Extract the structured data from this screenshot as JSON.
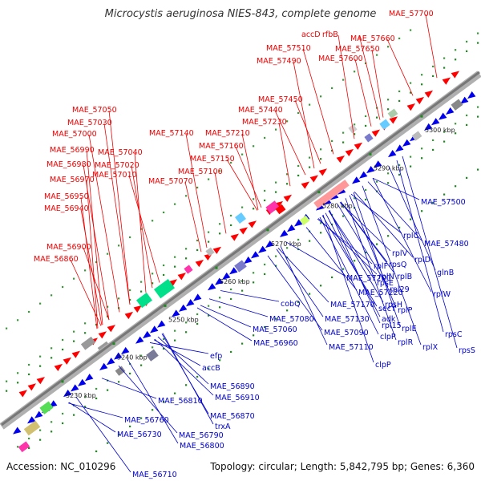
{
  "title": "Microcystis aeruginosa NIES-843, complete genome",
  "footer": {
    "accession": "Accession: NC_010296",
    "topology": "Topology: circular; Length: 5,842,795 bp; Genes: 6,360"
  },
  "colors": {
    "upper_label": "#ee0000",
    "lower_label": "#0000cc",
    "axis": "#9a9a9a",
    "tick": "#1f8a1f"
  },
  "axis_ticks": [
    "5230 kbp",
    "5240 kbp",
    "5250 kbp",
    "5260 kbp",
    "5270 kbp",
    "5280 kbp",
    "5290 kbp",
    "5300 kbp"
  ],
  "upper_labels": [
    "MAE_57700",
    "accD",
    "rfbB",
    "MAE_57660",
    "MAE_57510",
    "MAE_57650",
    "MAE_57600",
    "MAE_57490",
    "MAE_57450",
    "MAE_57440",
    "MAE_57230",
    "MAE_57210",
    "MAE_57140",
    "MAE_57160",
    "MAE_57150",
    "MAE_57100",
    "MAE_57070",
    "MAE_57050",
    "MAE_57030",
    "MAE_57000",
    "MAE_57040",
    "MAE_56990",
    "MAE_57020",
    "MAE_56980",
    "MAE_57010",
    "MAE_56970",
    "MAE_56950",
    "MAE_56940",
    "MAE_56900",
    "MAE_56860"
  ],
  "lower_labels": [
    "MAE_57500",
    "rplC",
    "MAE_57480",
    "rplD",
    "glnB",
    "rplV",
    "rplB",
    "rplW",
    "rpsQ",
    "rpl29",
    "rplF",
    "rplN",
    "rpsE",
    "MAE_57220",
    "rpsH",
    "MAE_57200",
    "rplP",
    "MAE_57170",
    "secY",
    "cobQ",
    "rplE",
    "rpl15",
    "adk",
    "rplX",
    "rpsC",
    "rplR",
    "rpsS",
    "MAE_57080",
    "MAE_57130",
    "MAE_57060",
    "MAE_57090",
    "clpP",
    "MAE_57110",
    "clpP",
    "MAE_56960",
    "efp",
    "accB",
    "MAE_56890",
    "MAE_56810",
    "MAE_56910",
    "MAE_56870",
    "trxA",
    "MAE_56760",
    "MAE_56790",
    "MAE_56730",
    "MAE_56800",
    "MAE_56710"
  ]
}
